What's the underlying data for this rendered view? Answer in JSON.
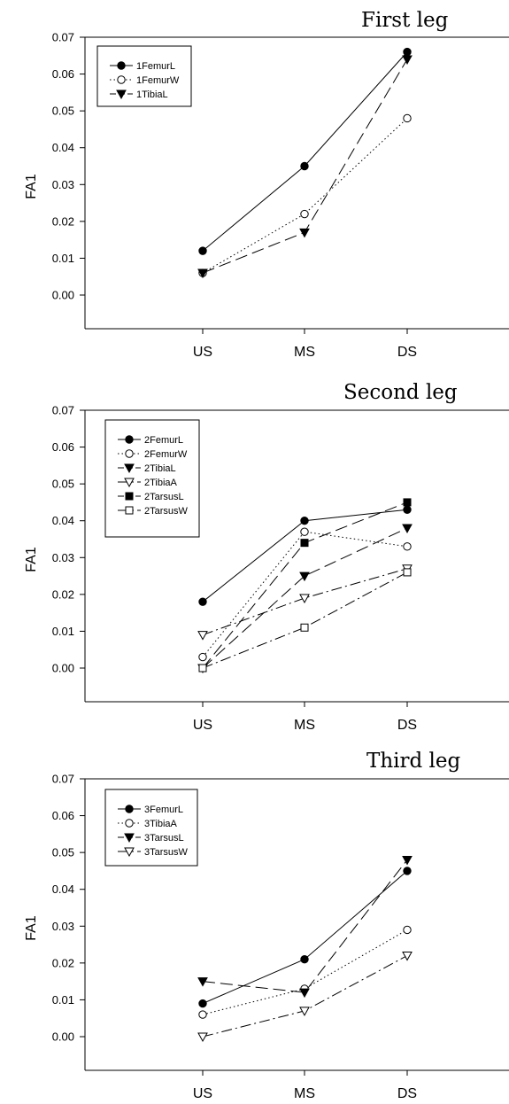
{
  "chart_data": [
    {
      "type": "line",
      "title": "First leg",
      "ylabel": "FA1",
      "categories": [
        "US",
        "MS",
        "DS"
      ],
      "ylim": [
        -0.01,
        0.07
      ],
      "yticks": [
        "0.00",
        "0.01",
        "0.02",
        "0.03",
        "0.04",
        "0.05",
        "0.06",
        "0.07"
      ],
      "legend_position": "top-left",
      "series": [
        {
          "name": "1FemurL",
          "values": [
            0.012,
            0.035,
            0.066
          ],
          "marker": "circle-filled",
          "dash": "solid"
        },
        {
          "name": "1FemurW",
          "values": [
            0.006,
            0.022,
            0.048
          ],
          "marker": "circle-open",
          "dash": "dotted"
        },
        {
          "name": "1TibiaL",
          "values": [
            0.006,
            0.017,
            0.064
          ],
          "marker": "triangle-filled",
          "dash": "dashed"
        }
      ]
    },
    {
      "type": "line",
      "title": "Second leg",
      "ylabel": "FA1",
      "categories": [
        "US",
        "MS",
        "DS"
      ],
      "ylim": [
        -0.01,
        0.07
      ],
      "yticks": [
        "0.00",
        "0.01",
        "0.02",
        "0.03",
        "0.04",
        "0.05",
        "0.06",
        "0.07"
      ],
      "legend_position": "top-left",
      "series": [
        {
          "name": "2FemurL",
          "values": [
            0.018,
            0.04,
            0.043
          ],
          "marker": "circle-filled",
          "dash": "solid"
        },
        {
          "name": "2FemurW",
          "values": [
            0.003,
            0.037,
            0.033
          ],
          "marker": "circle-open",
          "dash": "dotted"
        },
        {
          "name": "2TibiaL",
          "values": [
            0.0,
            0.025,
            0.038
          ],
          "marker": "triangle-filled",
          "dash": "dashed"
        },
        {
          "name": "2TibiaA",
          "values": [
            0.009,
            0.019,
            0.027
          ],
          "marker": "triangle-open",
          "dash": "dashdot"
        },
        {
          "name": "2TarsusL",
          "values": [
            0.0,
            0.034,
            0.045
          ],
          "marker": "square-filled",
          "dash": "dashed"
        },
        {
          "name": "2TarsusW",
          "values": [
            0.0,
            0.011,
            0.026
          ],
          "marker": "square-open",
          "dash": "dashdot"
        }
      ]
    },
    {
      "type": "line",
      "title": "Third leg",
      "ylabel": "FA1",
      "categories": [
        "US",
        "MS",
        "DS"
      ],
      "ylim": [
        -0.01,
        0.07
      ],
      "yticks": [
        "0.00",
        "0.01",
        "0.02",
        "0.03",
        "0.04",
        "0.05",
        "0.06",
        "0.07"
      ],
      "legend_position": "top-left",
      "series": [
        {
          "name": "3FemurL",
          "values": [
            0.009,
            0.021,
            0.045
          ],
          "marker": "circle-filled",
          "dash": "solid"
        },
        {
          "name": "3TibiaA",
          "values": [
            0.006,
            0.013,
            0.029
          ],
          "marker": "circle-open",
          "dash": "dotted"
        },
        {
          "name": "3TarsusL",
          "values": [
            0.015,
            0.012,
            0.048
          ],
          "marker": "triangle-filled",
          "dash": "dashed"
        },
        {
          "name": "3TarsusW",
          "values": [
            0.0,
            0.007,
            0.022
          ],
          "marker": "triangle-open",
          "dash": "dashdot"
        }
      ]
    }
  ]
}
